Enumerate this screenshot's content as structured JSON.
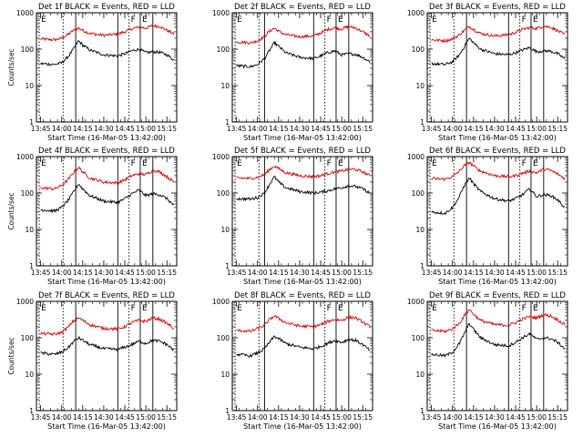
{
  "figure": {
    "colors": {
      "events": "#000000",
      "lld": "#e00000",
      "axes": "#000000"
    }
  },
  "chart_data": [
    {
      "type": "line",
      "title": "Det 1f BLACK = Events, RED = LLD",
      "xlabel": "Start Time (16-Mar-05 13:42:00)",
      "ylabel": "Counts/sec",
      "xlim": [
        "13:42",
        "15:22"
      ],
      "ylim": [
        1,
        1000
      ],
      "yscale": "log",
      "xtick_labels": [
        "13:45",
        "14:00",
        "14:15",
        "14:30",
        "14:45",
        "15:00",
        "15:15"
      ],
      "ytick_labels": [
        "1",
        "10",
        "100",
        "1000"
      ],
      "vlines_dotted": [
        "13:44",
        "14:01",
        "14:48"
      ],
      "vlines_solid": [
        "14:10",
        "14:40",
        "14:56",
        "15:05"
      ],
      "region_labels": [
        {
          "text": "E",
          "at": "13:44"
        },
        {
          "text": "F",
          "at": "14:48"
        },
        {
          "text": "E",
          "at": "14:56"
        }
      ],
      "x": [
        "13:45",
        "13:55",
        "14:00",
        "14:05",
        "14:08",
        "14:12",
        "14:15",
        "14:20",
        "14:30",
        "14:40",
        "14:45",
        "14:50",
        "14:55",
        "15:00",
        "15:05",
        "15:10",
        "15:15",
        "15:20"
      ],
      "series": [
        {
          "label": "RED = LLD",
          "color": "#e00000",
          "values": [
            190,
            180,
            200,
            260,
            320,
            380,
            330,
            270,
            240,
            260,
            300,
            360,
            400,
            380,
            440,
            420,
            330,
            260
          ]
        },
        {
          "label": "BLACK = Events",
          "color": "#000000",
          "values": [
            40,
            38,
            42,
            65,
            95,
            170,
            130,
            95,
            70,
            65,
            75,
            90,
            100,
            80,
            85,
            82,
            70,
            50
          ]
        }
      ]
    },
    {
      "type": "line",
      "title": "Det 2f BLACK = Events, RED = LLD",
      "xlabel": "Start Time (16-Mar-05 13:42:00)",
      "ylabel": "",
      "xlim": [
        "13:42",
        "15:22"
      ],
      "ylim": [
        1,
        1000
      ],
      "yscale": "log",
      "xtick_labels": [
        "13:45",
        "14:00",
        "14:15",
        "14:30",
        "14:45",
        "15:00",
        "15:15"
      ],
      "ytick_labels": [
        "1",
        "10",
        "100",
        "1000"
      ],
      "vlines_dotted": [
        "13:44",
        "14:01",
        "14:48"
      ],
      "vlines_solid": [
        "14:05",
        "14:40",
        "14:56",
        "15:05"
      ],
      "region_labels": [
        {
          "text": "E",
          "at": "13:44"
        },
        {
          "text": "F",
          "at": "14:48"
        },
        {
          "text": "E",
          "at": "14:56"
        }
      ],
      "x": [
        "13:45",
        "13:55",
        "14:00",
        "14:05",
        "14:08",
        "14:12",
        "14:15",
        "14:20",
        "14:30",
        "14:40",
        "14:45",
        "14:50",
        "14:55",
        "15:00",
        "15:05",
        "15:10",
        "15:15",
        "15:20"
      ],
      "series": [
        {
          "label": "RED = LLD",
          "color": "#e00000",
          "values": [
            160,
            150,
            170,
            220,
            300,
            380,
            310,
            250,
            220,
            230,
            280,
            350,
            380,
            360,
            420,
            380,
            300,
            230
          ]
        },
        {
          "label": "BLACK = Events",
          "color": "#000000",
          "values": [
            35,
            33,
            38,
            55,
            85,
            150,
            120,
            80,
            60,
            55,
            65,
            80,
            90,
            70,
            75,
            72,
            60,
            45
          ]
        }
      ]
    },
    {
      "type": "line",
      "title": "Det 3f BLACK = Events, RED = LLD",
      "xlabel": "Start Time (16-Mar-05 13:42:00)",
      "ylabel": "",
      "xlim": [
        "13:42",
        "15:22"
      ],
      "ylim": [
        1,
        1000
      ],
      "yscale": "log",
      "xtick_labels": [
        "13:45",
        "14:00",
        "14:15",
        "14:30",
        "14:45",
        "15:00",
        "15:15"
      ],
      "ytick_labels": [
        "1",
        "10",
        "100",
        "1000"
      ],
      "vlines_dotted": [
        "13:44",
        "14:01",
        "14:48"
      ],
      "vlines_solid": [
        "14:10",
        "14:40",
        "14:56",
        "15:05"
      ],
      "region_labels": [
        {
          "text": "E",
          "at": "13:44"
        },
        {
          "text": "F",
          "at": "14:48"
        },
        {
          "text": "E",
          "at": "14:56"
        }
      ],
      "x": [
        "13:45",
        "13:55",
        "14:00",
        "14:05",
        "14:08",
        "14:12",
        "14:15",
        "14:20",
        "14:30",
        "14:40",
        "14:45",
        "14:50",
        "14:55",
        "15:00",
        "15:05",
        "15:10",
        "15:15",
        "15:20"
      ],
      "series": [
        {
          "label": "RED = LLD",
          "color": "#e00000",
          "values": [
            180,
            170,
            190,
            250,
            320,
            420,
            350,
            270,
            230,
            250,
            290,
            350,
            390,
            370,
            430,
            400,
            320,
            250
          ]
        },
        {
          "label": "BLACK = Events",
          "color": "#000000",
          "values": [
            40,
            38,
            45,
            70,
            110,
            200,
            150,
            100,
            75,
            70,
            80,
            95,
            110,
            85,
            90,
            88,
            75,
            55
          ]
        }
      ]
    },
    {
      "type": "line",
      "title": "Det 4f BLACK = Events, RED = LLD",
      "xlabel": "Start Time (16-Mar-05 13:42:00)",
      "ylabel": "Counts/sec",
      "xlim": [
        "13:42",
        "15:22"
      ],
      "ylim": [
        1,
        1000
      ],
      "yscale": "log",
      "xtick_labels": [
        "13:45",
        "14:00",
        "14:15",
        "14:30",
        "14:45",
        "15:00",
        "15:15"
      ],
      "ytick_labels": [
        "1",
        "10",
        "100",
        "1000"
      ],
      "vlines_dotted": [
        "13:44",
        "14:01",
        "14:48"
      ],
      "vlines_solid": [
        "14:10",
        "14:40",
        "14:56",
        "15:05"
      ],
      "region_labels": [
        {
          "text": "E",
          "at": "13:44"
        },
        {
          "text": "F",
          "at": "14:48"
        },
        {
          "text": "E",
          "at": "14:56"
        }
      ],
      "x": [
        "13:45",
        "13:55",
        "14:00",
        "14:05",
        "14:08",
        "14:12",
        "14:15",
        "14:20",
        "14:30",
        "14:40",
        "14:45",
        "14:50",
        "14:55",
        "15:00",
        "15:05",
        "15:10",
        "15:15",
        "15:20"
      ],
      "series": [
        {
          "label": "RED = LLD",
          "color": "#e00000",
          "values": [
            140,
            130,
            160,
            240,
            350,
            500,
            380,
            260,
            200,
            190,
            230,
            300,
            340,
            320,
            420,
            380,
            280,
            200
          ]
        },
        {
          "label": "BLACK = Events",
          "color": "#000000",
          "values": [
            35,
            32,
            40,
            65,
            100,
            180,
            130,
            85,
            60,
            55,
            70,
            95,
            120,
            85,
            95,
            90,
            70,
            45
          ]
        }
      ]
    },
    {
      "type": "line",
      "title": "Det 5f BLACK = Events, RED = LLD",
      "xlabel": "Start Time (16-Mar-05 13:42:00)",
      "ylabel": "",
      "xlim": [
        "13:42",
        "15:22"
      ],
      "ylim": [
        1,
        1000
      ],
      "yscale": "log",
      "xtick_labels": [
        "13:45",
        "14:00",
        "14:15",
        "14:30",
        "14:45",
        "15:00",
        "15:15"
      ],
      "ytick_labels": [
        "1",
        "10",
        "100",
        "1000"
      ],
      "vlines_dotted": [
        "13:44",
        "14:01",
        "14:48"
      ],
      "vlines_solid": [
        "14:05",
        "14:40",
        "14:56",
        "15:05"
      ],
      "region_labels": [
        {
          "text": "E",
          "at": "13:44"
        },
        {
          "text": "F",
          "at": "14:48"
        },
        {
          "text": "E",
          "at": "14:56"
        }
      ],
      "x": [
        "13:45",
        "13:55",
        "14:00",
        "14:05",
        "14:08",
        "14:12",
        "14:15",
        "14:20",
        "14:30",
        "14:40",
        "14:45",
        "14:50",
        "14:55",
        "15:00",
        "15:05",
        "15:10",
        "15:15",
        "15:20"
      ],
      "series": [
        {
          "label": "RED = LLD",
          "color": "#e00000",
          "values": [
            260,
            250,
            270,
            320,
            420,
            550,
            470,
            360,
            300,
            280,
            300,
            340,
            380,
            400,
            450,
            440,
            380,
            300
          ]
        },
        {
          "label": "BLACK = Events",
          "color": "#000000",
          "values": [
            70,
            68,
            75,
            100,
            160,
            280,
            200,
            140,
            110,
            100,
            105,
            115,
            130,
            140,
            160,
            150,
            130,
            100
          ]
        }
      ]
    },
    {
      "type": "line",
      "title": "Det 6f BLACK = Events, RED = LLD",
      "xlabel": "Start Time (16-Mar-05 13:42:00)",
      "ylabel": "",
      "xlim": [
        "13:42",
        "15:22"
      ],
      "ylim": [
        1,
        1000
      ],
      "yscale": "log",
      "xtick_labels": [
        "13:45",
        "14:00",
        "14:15",
        "14:30",
        "14:45",
        "15:00",
        "15:15"
      ],
      "ytick_labels": [
        "1",
        "10",
        "100",
        "1000"
      ],
      "vlines_dotted": [
        "13:44",
        "14:01",
        "14:48"
      ],
      "vlines_solid": [
        "14:10",
        "14:40",
        "14:56",
        "15:05"
      ],
      "region_labels": [
        {
          "text": "E",
          "at": "13:44"
        },
        {
          "text": "F",
          "at": "14:48"
        },
        {
          "text": "E",
          "at": "14:56"
        }
      ],
      "x": [
        "13:45",
        "13:55",
        "14:00",
        "14:05",
        "14:08",
        "14:12",
        "14:15",
        "14:20",
        "14:30",
        "14:40",
        "14:45",
        "14:50",
        "14:55",
        "15:00",
        "15:05",
        "15:10",
        "15:15",
        "15:20"
      ],
      "series": [
        {
          "label": "RED = LLD",
          "color": "#e00000",
          "values": [
            250,
            240,
            280,
            400,
            550,
            700,
            550,
            400,
            300,
            280,
            300,
            350,
            400,
            360,
            450,
            420,
            330,
            250
          ]
        },
        {
          "label": "BLACK = Events",
          "color": "#000000",
          "values": [
            30,
            28,
            40,
            80,
            150,
            260,
            180,
            110,
            70,
            60,
            70,
            90,
            130,
            80,
            90,
            85,
            65,
            40
          ]
        }
      ]
    },
    {
      "type": "line",
      "title": "Det 7f BLACK = Events, RED = LLD",
      "xlabel": "Start Time (16-Mar-05 13:42:00)",
      "ylabel": "Counts/sec",
      "xlim": [
        "13:42",
        "15:22"
      ],
      "ylim": [
        1,
        1000
      ],
      "yscale": "log",
      "xtick_labels": [
        "13:45",
        "14:00",
        "14:15",
        "14:30",
        "14:45",
        "15:00",
        "15:15"
      ],
      "ytick_labels": [
        "1",
        "10",
        "100",
        "1000"
      ],
      "vlines_dotted": [
        "13:44",
        "14:01",
        "14:48"
      ],
      "vlines_solid": [
        "14:10",
        "14:40",
        "14:56",
        "15:05"
      ],
      "region_labels": [
        {
          "text": "E",
          "at": "13:44"
        },
        {
          "text": "F",
          "at": "14:48"
        },
        {
          "text": "E",
          "at": "14:56"
        }
      ],
      "x": [
        "13:45",
        "13:55",
        "14:00",
        "14:05",
        "14:08",
        "14:12",
        "14:15",
        "14:20",
        "14:30",
        "14:40",
        "14:45",
        "14:50",
        "14:55",
        "15:00",
        "15:05",
        "15:10",
        "15:15",
        "15:20"
      ],
      "series": [
        {
          "label": "RED = LLD",
          "color": "#e00000",
          "values": [
            130,
            125,
            140,
            200,
            280,
            350,
            300,
            230,
            180,
            175,
            200,
            260,
            300,
            280,
            350,
            320,
            250,
            180
          ]
        },
        {
          "label": "BLACK = Events",
          "color": "#000000",
          "values": [
            38,
            35,
            40,
            55,
            75,
            100,
            85,
            65,
            50,
            48,
            55,
            65,
            80,
            70,
            85,
            80,
            65,
            45
          ]
        }
      ]
    },
    {
      "type": "line",
      "title": "Det 8f BLACK = Events, RED = LLD",
      "xlabel": "Start Time (16-Mar-05 13:42:00)",
      "ylabel": "",
      "xlim": [
        "13:42",
        "15:22"
      ],
      "ylim": [
        1,
        1000
      ],
      "yscale": "log",
      "xtick_labels": [
        "13:45",
        "14:00",
        "14:15",
        "14:30",
        "14:45",
        "15:00",
        "15:15"
      ],
      "ytick_labels": [
        "1",
        "10",
        "100",
        "1000"
      ],
      "vlines_dotted": [
        "13:44",
        "14:01",
        "14:48"
      ],
      "vlines_solid": [
        "14:05",
        "14:40",
        "14:56",
        "15:05"
      ],
      "region_labels": [
        {
          "text": "E",
          "at": "13:44"
        },
        {
          "text": "F",
          "at": "14:48"
        },
        {
          "text": "E",
          "at": "14:56"
        }
      ],
      "x": [
        "13:45",
        "13:55",
        "14:00",
        "14:05",
        "14:08",
        "14:12",
        "14:15",
        "14:20",
        "14:30",
        "14:40",
        "14:45",
        "14:50",
        "14:55",
        "15:00",
        "15:05",
        "15:10",
        "15:15",
        "15:20"
      ],
      "series": [
        {
          "label": "RED = LLD",
          "color": "#e00000",
          "values": [
            160,
            150,
            180,
            220,
            300,
            400,
            340,
            260,
            210,
            200,
            230,
            280,
            320,
            300,
            370,
            350,
            270,
            200
          ]
        },
        {
          "label": "BLACK = Events",
          "color": "#000000",
          "values": [
            35,
            32,
            38,
            50,
            70,
            110,
            95,
            70,
            55,
            50,
            58,
            70,
            85,
            75,
            90,
            85,
            65,
            45
          ]
        }
      ]
    },
    {
      "type": "line",
      "title": "Det 9f BLACK = Events, RED = LLD",
      "xlabel": "Start Time (16-Mar-05 13:42:00)",
      "ylabel": "",
      "xlim": [
        "13:42",
        "15:22"
      ],
      "ylim": [
        1,
        1000
      ],
      "yscale": "log",
      "xtick_labels": [
        "13:45",
        "14:00",
        "14:15",
        "14:30",
        "14:45",
        "15:00",
        "15:15"
      ],
      "ytick_labels": [
        "1",
        "10",
        "100",
        "1000"
      ],
      "vlines_dotted": [
        "13:44",
        "14:01",
        "14:48"
      ],
      "vlines_solid": [
        "14:10",
        "14:40",
        "14:56",
        "15:05"
      ],
      "region_labels": [
        {
          "text": "E",
          "at": "13:44"
        },
        {
          "text": "F",
          "at": "14:48"
        },
        {
          "text": "E",
          "at": "14:56"
        }
      ],
      "x": [
        "13:45",
        "13:55",
        "14:00",
        "14:05",
        "14:08",
        "14:12",
        "14:15",
        "14:20",
        "14:30",
        "14:40",
        "14:45",
        "14:50",
        "14:55",
        "15:00",
        "15:05",
        "15:10",
        "15:15",
        "15:20"
      ],
      "series": [
        {
          "label": "RED = LLD",
          "color": "#e00000",
          "values": [
            160,
            150,
            175,
            250,
            380,
            600,
            450,
            300,
            230,
            220,
            260,
            330,
            380,
            350,
            430,
            400,
            310,
            230
          ]
        },
        {
          "label": "BLACK = Events",
          "color": "#000000",
          "values": [
            35,
            32,
            40,
            70,
            120,
            250,
            170,
            100,
            65,
            60,
            75,
            100,
            130,
            90,
            100,
            95,
            75,
            50
          ]
        }
      ]
    }
  ]
}
